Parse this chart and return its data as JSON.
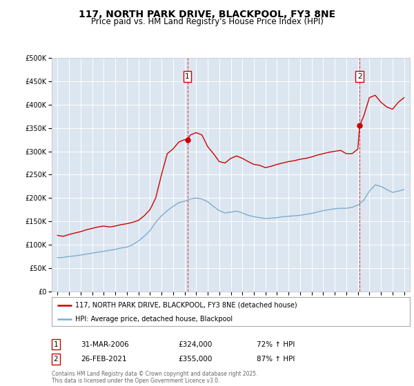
{
  "title": "117, NORTH PARK DRIVE, BLACKPOOL, FY3 8NE",
  "subtitle": "Price paid vs. HM Land Registry's House Price Index (HPI)",
  "title_fontsize": 10,
  "subtitle_fontsize": 8.5,
  "background_color": "#ffffff",
  "plot_bg_color": "#dce6f0",
  "grid_color": "#ffffff",
  "red_line_color": "#cc0000",
  "blue_line_color": "#7aadcf",
  "sale1_x": 2006.24,
  "sale1_y": 324000,
  "sale1_label": "1",
  "sale1_date": "31-MAR-2006",
  "sale1_price": "£324,000",
  "sale1_hpi": "72% ↑ HPI",
  "sale2_x": 2021.15,
  "sale2_y": 355000,
  "sale2_label": "2",
  "sale2_date": "26-FEB-2021",
  "sale2_price": "£355,000",
  "sale2_hpi": "87% ↑ HPI",
  "ylim": [
    0,
    500000
  ],
  "xlim": [
    1994.5,
    2025.5
  ],
  "yticks": [
    0,
    50000,
    100000,
    150000,
    200000,
    250000,
    300000,
    350000,
    400000,
    450000,
    500000
  ],
  "ytick_labels": [
    "£0",
    "£50K",
    "£100K",
    "£150K",
    "£200K",
    "£250K",
    "£300K",
    "£350K",
    "£400K",
    "£450K",
    "£500K"
  ],
  "xticks": [
    1995,
    1996,
    1997,
    1998,
    1999,
    2000,
    2001,
    2002,
    2003,
    2004,
    2005,
    2006,
    2007,
    2008,
    2009,
    2010,
    2011,
    2012,
    2013,
    2014,
    2015,
    2016,
    2017,
    2018,
    2019,
    2020,
    2021,
    2022,
    2023,
    2024,
    2025
  ],
  "legend_label_red": "117, NORTH PARK DRIVE, BLACKPOOL, FY3 8NE (detached house)",
  "legend_label_blue": "HPI: Average price, detached house, Blackpool",
  "footnote": "Contains HM Land Registry data © Crown copyright and database right 2025.\nThis data is licensed under the Open Government Licence v3.0.",
  "red_data": [
    [
      1995.0,
      120000
    ],
    [
      1995.5,
      118000
    ],
    [
      1996.0,
      122000
    ],
    [
      1996.5,
      125000
    ],
    [
      1997.0,
      128000
    ],
    [
      1997.5,
      132000
    ],
    [
      1998.0,
      135000
    ],
    [
      1998.5,
      138000
    ],
    [
      1999.0,
      140000
    ],
    [
      1999.5,
      138000
    ],
    [
      2000.0,
      140000
    ],
    [
      2000.5,
      143000
    ],
    [
      2001.0,
      145000
    ],
    [
      2001.5,
      148000
    ],
    [
      2002.0,
      152000
    ],
    [
      2002.5,
      162000
    ],
    [
      2003.0,
      175000
    ],
    [
      2003.5,
      200000
    ],
    [
      2004.0,
      250000
    ],
    [
      2004.5,
      295000
    ],
    [
      2005.0,
      305000
    ],
    [
      2005.5,
      320000
    ],
    [
      2006.0,
      325000
    ],
    [
      2006.24,
      324000
    ],
    [
      2006.5,
      335000
    ],
    [
      2007.0,
      340000
    ],
    [
      2007.5,
      335000
    ],
    [
      2008.0,
      310000
    ],
    [
      2008.5,
      295000
    ],
    [
      2009.0,
      278000
    ],
    [
      2009.5,
      275000
    ],
    [
      2010.0,
      285000
    ],
    [
      2010.5,
      290000
    ],
    [
      2011.0,
      285000
    ],
    [
      2011.5,
      278000
    ],
    [
      2012.0,
      272000
    ],
    [
      2012.5,
      270000
    ],
    [
      2013.0,
      265000
    ],
    [
      2013.5,
      268000
    ],
    [
      2014.0,
      272000
    ],
    [
      2014.5,
      275000
    ],
    [
      2015.0,
      278000
    ],
    [
      2015.5,
      280000
    ],
    [
      2016.0,
      283000
    ],
    [
      2016.5,
      285000
    ],
    [
      2017.0,
      288000
    ],
    [
      2017.5,
      292000
    ],
    [
      2018.0,
      295000
    ],
    [
      2018.5,
      298000
    ],
    [
      2019.0,
      300000
    ],
    [
      2019.5,
      302000
    ],
    [
      2020.0,
      295000
    ],
    [
      2020.5,
      295000
    ],
    [
      2021.0,
      305000
    ],
    [
      2021.15,
      355000
    ],
    [
      2021.5,
      375000
    ],
    [
      2022.0,
      415000
    ],
    [
      2022.5,
      420000
    ],
    [
      2023.0,
      405000
    ],
    [
      2023.5,
      395000
    ],
    [
      2024.0,
      390000
    ],
    [
      2024.5,
      405000
    ],
    [
      2025.0,
      415000
    ]
  ],
  "blue_data": [
    [
      1995.0,
      72000
    ],
    [
      1995.5,
      73000
    ],
    [
      1996.0,
      75000
    ],
    [
      1996.5,
      76000
    ],
    [
      1997.0,
      78000
    ],
    [
      1997.5,
      80000
    ],
    [
      1998.0,
      82000
    ],
    [
      1998.5,
      84000
    ],
    [
      1999.0,
      86000
    ],
    [
      1999.5,
      88000
    ],
    [
      2000.0,
      90000
    ],
    [
      2000.5,
      93000
    ],
    [
      2001.0,
      95000
    ],
    [
      2001.5,
      100000
    ],
    [
      2002.0,
      108000
    ],
    [
      2002.5,
      118000
    ],
    [
      2003.0,
      130000
    ],
    [
      2003.5,
      148000
    ],
    [
      2004.0,
      162000
    ],
    [
      2004.5,
      173000
    ],
    [
      2005.0,
      182000
    ],
    [
      2005.5,
      190000
    ],
    [
      2006.0,
      193000
    ],
    [
      2006.5,
      198000
    ],
    [
      2007.0,
      200000
    ],
    [
      2007.5,
      198000
    ],
    [
      2008.0,
      192000
    ],
    [
      2008.5,
      182000
    ],
    [
      2009.0,
      173000
    ],
    [
      2009.5,
      168000
    ],
    [
      2010.0,
      170000
    ],
    [
      2010.5,
      172000
    ],
    [
      2011.0,
      168000
    ],
    [
      2011.5,
      163000
    ],
    [
      2012.0,
      160000
    ],
    [
      2012.5,
      158000
    ],
    [
      2013.0,
      156000
    ],
    [
      2013.5,
      157000
    ],
    [
      2014.0,
      158000
    ],
    [
      2014.5,
      160000
    ],
    [
      2015.0,
      161000
    ],
    [
      2015.5,
      162000
    ],
    [
      2016.0,
      163000
    ],
    [
      2016.5,
      165000
    ],
    [
      2017.0,
      167000
    ],
    [
      2017.5,
      170000
    ],
    [
      2018.0,
      173000
    ],
    [
      2018.5,
      175000
    ],
    [
      2019.0,
      177000
    ],
    [
      2019.5,
      178000
    ],
    [
      2020.0,
      178000
    ],
    [
      2020.5,
      180000
    ],
    [
      2021.0,
      185000
    ],
    [
      2021.5,
      195000
    ],
    [
      2022.0,
      215000
    ],
    [
      2022.5,
      228000
    ],
    [
      2023.0,
      225000
    ],
    [
      2023.5,
      218000
    ],
    [
      2024.0,
      212000
    ],
    [
      2024.5,
      215000
    ],
    [
      2025.0,
      218000
    ]
  ]
}
